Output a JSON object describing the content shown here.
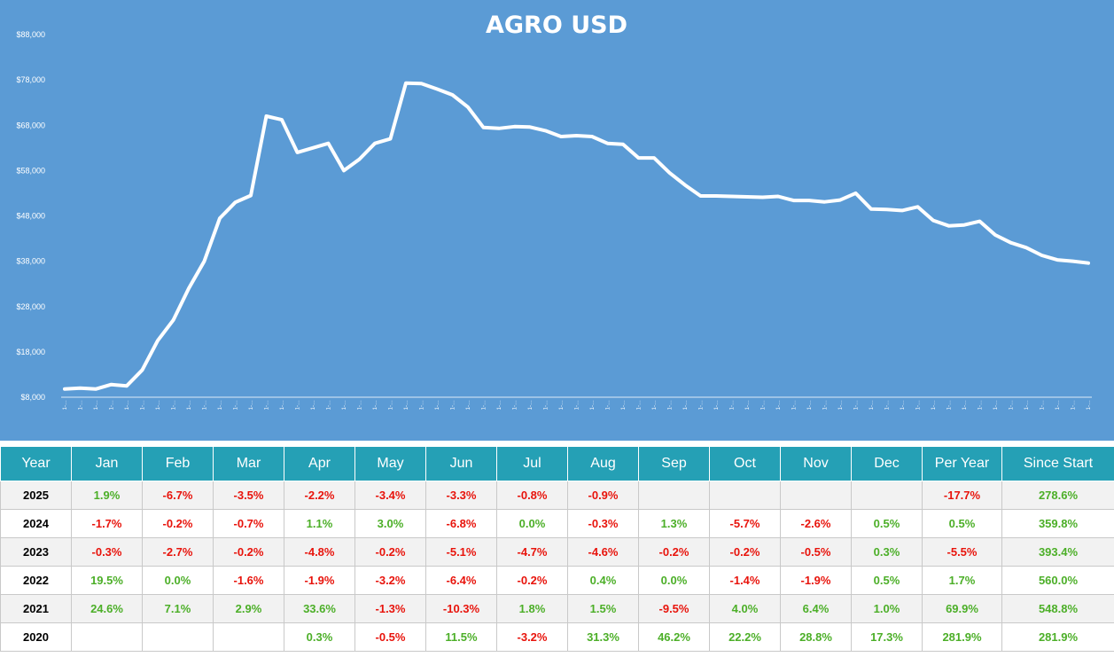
{
  "chart_data": {
    "type": "area",
    "title": "AGRO USD",
    "xlabel": "",
    "ylabel": "",
    "ylim": [
      8000,
      88000
    ],
    "yticks": [
      "$8,000",
      "$18,000",
      "$28,000",
      "$38,000",
      "$48,000",
      "$58,000",
      "$68,000",
      "$78,000",
      "$88,000"
    ],
    "ytick_values": [
      8000,
      18000,
      28000,
      38000,
      48000,
      58000,
      68000,
      78000,
      88000
    ],
    "x_tick_label": "1-…",
    "grid": false,
    "series": [
      {
        "values": [
          9800,
          10000,
          9800,
          10800,
          10500,
          14000,
          20500,
          25000,
          32000,
          38000,
          47500,
          51000,
          52500,
          70000,
          69200,
          62000,
          63000,
          64000,
          58000,
          60500,
          64000,
          65000,
          77300,
          77200,
          76000,
          74700,
          72000,
          67500,
          67300,
          67700,
          67600,
          66800,
          65500,
          65700,
          65500,
          64000,
          63800,
          60800,
          60800,
          57500,
          54800,
          52400,
          52400,
          52300,
          52200,
          52100,
          52300,
          51400,
          51400,
          51100,
          51500,
          53000,
          49500,
          49400,
          49200,
          50000,
          47000,
          45800,
          46000,
          46800,
          43800,
          42100,
          41000,
          39300,
          38300,
          38000,
          37600
        ]
      }
    ],
    "colors": {
      "background": "#5b9bd5",
      "line": "#ffffff"
    }
  },
  "table": {
    "headers": [
      "Year",
      "Jan",
      "Feb",
      "Mar",
      "Apr",
      "May",
      "Jun",
      "Jul",
      "Aug",
      "Sep",
      "Oct",
      "Nov",
      "Dec",
      "Per Year",
      "Since Start"
    ],
    "rows": [
      [
        "2025",
        "1.9%",
        "-6.7%",
        "-3.5%",
        "-2.2%",
        "-3.4%",
        "-3.3%",
        "-0.8%",
        "-0.9%",
        "",
        "",
        "",
        "",
        "-17.7%",
        "278.6%"
      ],
      [
        "2024",
        "-1.7%",
        "-0.2%",
        "-0.7%",
        "1.1%",
        "3.0%",
        "-6.8%",
        "0.0%",
        "-0.3%",
        "1.3%",
        "-5.7%",
        "-2.6%",
        "0.5%",
        "0.5%",
        "359.8%"
      ],
      [
        "2023",
        "-0.3%",
        "-2.7%",
        "-0.2%",
        "-4.8%",
        "-0.2%",
        "-5.1%",
        "-4.7%",
        "-4.6%",
        "-0.2%",
        "-0.2%",
        "-0.5%",
        "0.3%",
        "-5.5%",
        "393.4%"
      ],
      [
        "2022",
        "19.5%",
        "0.0%",
        "-1.6%",
        "-1.9%",
        "-3.2%",
        "-6.4%",
        "-0.2%",
        "0.4%",
        "0.0%",
        "-1.4%",
        "-1.9%",
        "0.5%",
        "1.7%",
        "560.0%"
      ],
      [
        "2021",
        "24.6%",
        "7.1%",
        "2.9%",
        "33.6%",
        "-1.3%",
        "-10.3%",
        "1.8%",
        "1.5%",
        "-9.5%",
        "4.0%",
        "6.4%",
        "1.0%",
        "69.9%",
        "548.8%"
      ],
      [
        "2020",
        "",
        "",
        "",
        "0.3%",
        "-0.5%",
        "11.5%",
        "-3.2%",
        "31.3%",
        "46.2%",
        "22.2%",
        "28.8%",
        "17.3%",
        "281.9%",
        "281.9%"
      ]
    ],
    "colors": {
      "header_bg": "#25a0b5",
      "positive": "#4caf28",
      "negative": "#e8140c"
    }
  }
}
